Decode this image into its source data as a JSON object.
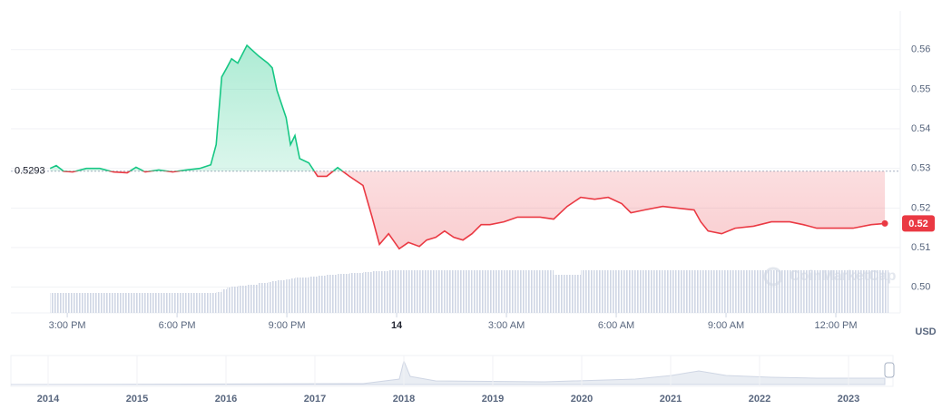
{
  "chart_data": {
    "type": "line",
    "x": [
      14.53,
      14.7,
      14.9,
      15.15,
      15.52,
      15.89,
      16.26,
      16.64,
      16.88,
      17.13,
      17.5,
      17.88,
      18.25,
      18.62,
      18.92,
      19.07,
      19.22,
      19.36,
      19.49,
      19.66,
      19.91,
      20.23,
      20.48,
      20.6,
      20.73,
      20.98,
      21.1,
      21.22,
      21.35,
      21.6,
      21.84,
      22.09,
      22.39,
      22.71,
      23.08,
      23.33,
      23.53,
      23.78,
      24.07,
      24.32,
      24.62,
      24.82,
      25.07,
      25.31,
      25.56,
      25.81,
      26.06,
      26.31,
      26.55,
      26.93,
      27.3,
      27.55,
      27.92,
      28.29,
      28.66,
      29.03,
      29.41,
      29.78,
      30.15,
      30.4,
      30.77,
      31.27,
      31.64,
      32.13,
      32.31,
      32.51,
      32.88,
      33.25,
      33.75,
      34.24,
      34.74,
      35.11,
      35.48,
      35.98,
      36.47,
      36.97,
      37.34
    ],
    "values": [
      0.53,
      0.5307,
      0.5293,
      0.5291,
      0.53,
      0.53,
      0.5291,
      0.5289,
      0.5303,
      0.5291,
      0.5296,
      0.5291,
      0.5296,
      0.53,
      0.5309,
      0.536,
      0.5531,
      0.5554,
      0.5577,
      0.5566,
      0.5611,
      0.5584,
      0.5566,
      0.5554,
      0.5497,
      0.5428,
      0.536,
      0.5383,
      0.5325,
      0.5314,
      0.528,
      0.528,
      0.5302,
      0.528,
      0.5257,
      0.5177,
      0.5108,
      0.5135,
      0.5097,
      0.5113,
      0.5103,
      0.5119,
      0.5126,
      0.5142,
      0.5126,
      0.5119,
      0.5135,
      0.5158,
      0.5158,
      0.5165,
      0.5177,
      0.5177,
      0.5177,
      0.5172,
      0.5204,
      0.5227,
      0.5222,
      0.5227,
      0.5211,
      0.5188,
      0.5195,
      0.5204,
      0.52,
      0.5195,
      0.5165,
      0.5142,
      0.5135,
      0.5149,
      0.5154,
      0.5165,
      0.5165,
      0.5158,
      0.5149,
      0.5149,
      0.5149,
      0.5158,
      0.5161
    ],
    "volume": [
      22,
      22,
      22,
      22,
      22,
      22,
      22,
      22,
      22,
      22,
      22,
      22,
      22,
      22,
      22,
      23,
      26,
      28,
      29,
      30,
      31,
      33,
      34,
      35,
      36,
      37,
      38,
      39,
      39,
      40,
      41,
      42,
      43,
      44,
      45,
      46,
      46,
      47,
      47,
      47,
      47,
      47,
      47,
      47,
      47,
      47,
      47,
      47,
      47,
      47,
      47,
      47,
      47,
      42,
      42,
      47,
      47,
      47,
      47,
      47,
      47,
      47,
      47,
      47,
      47,
      47,
      47,
      47,
      47,
      47,
      47,
      47,
      47,
      47,
      47,
      47,
      47
    ],
    "volume_lim": [
      0,
      100
    ],
    "baseline": 0.5293,
    "up_color": "#16c784",
    "down_color": "#ea3943",
    "last_value_label": "0.52",
    "xlim": [
      13.46,
      37.76
    ],
    "ylim": [
      0.4935,
      0.5698
    ],
    "xticks": [
      {
        "value": 15,
        "label": "3:00 PM"
      },
      {
        "value": 18,
        "label": "6:00 PM"
      },
      {
        "value": 21,
        "label": "9:00 PM"
      },
      {
        "value": 24,
        "label": "14"
      },
      {
        "value": 27,
        "label": "3:00 AM"
      },
      {
        "value": 30,
        "label": "6:00 AM"
      },
      {
        "value": 33,
        "label": "9:00 AM"
      },
      {
        "value": 36,
        "label": "12:00 PM"
      }
    ],
    "yticks": [
      {
        "value": 0.5,
        "label": "0.50"
      },
      0.51,
      0.52,
      0.53,
      0.54,
      0.55,
      0.56
    ],
    "y_unit": "USD",
    "grid": true,
    "watermark": "CoinMarketCap",
    "navigator_labels": [
      "2014",
      "2015",
      "2016",
      "2017",
      "2018",
      "2019",
      "2020",
      "2021",
      "2022",
      "2023"
    ]
  }
}
